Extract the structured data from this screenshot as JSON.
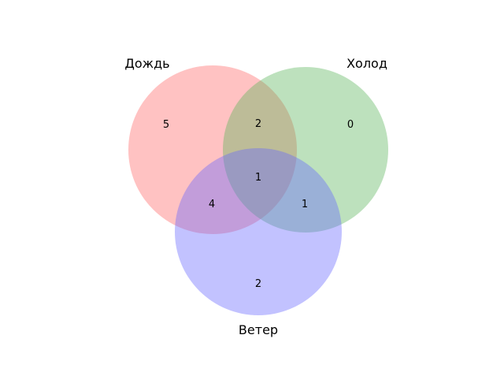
{
  "sets": {
    "a": {
      "label": "Дождь",
      "color": "#ff6666"
    },
    "b": {
      "label": "Холод",
      "color": "#5bb35b"
    },
    "c": {
      "label": "Ветер",
      "color": "#6666ff"
    }
  },
  "regions": {
    "a_only": "5",
    "b_only": "0",
    "ab_only": "2",
    "abc": "1",
    "ac_only": "4",
    "bc_only": "1",
    "c_only": "2"
  }
}
